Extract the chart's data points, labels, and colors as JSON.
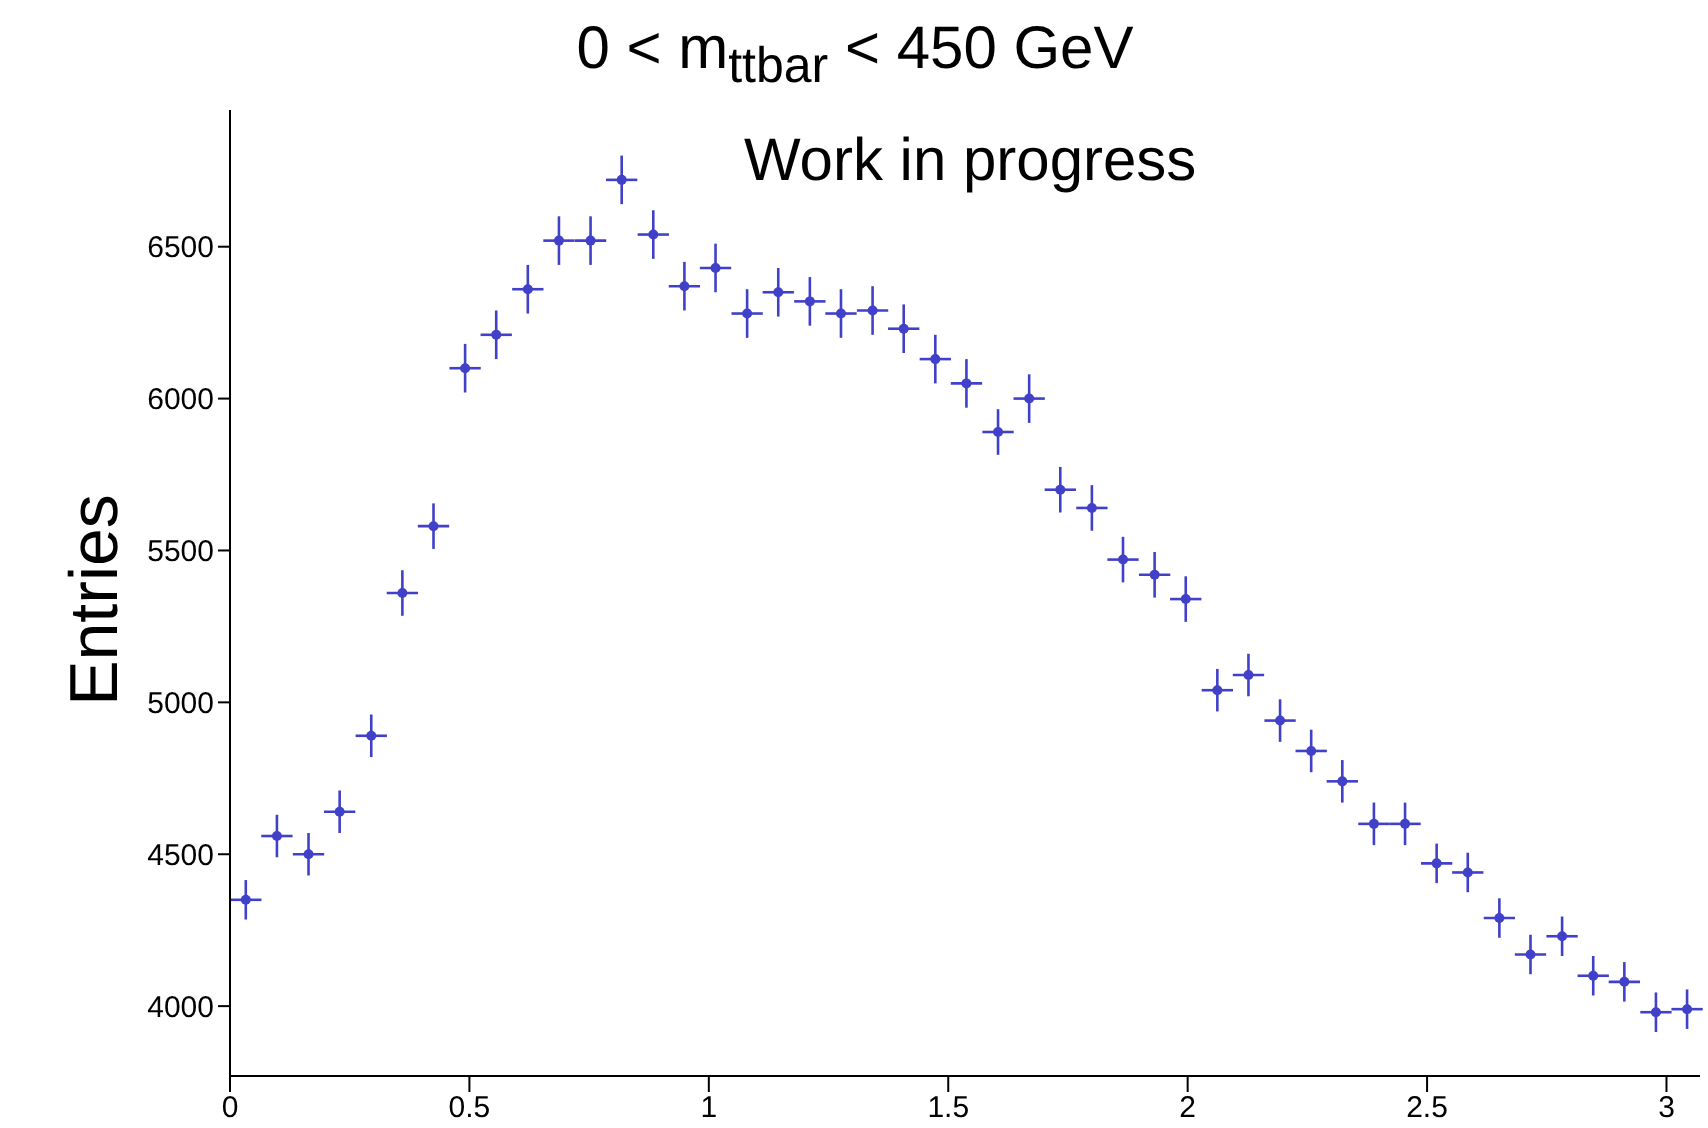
{
  "chart_data": {
    "type": "scatter",
    "title": "0 < m$_{ttbar}$ < 450 GeV",
    "ylabel": "Entries",
    "annotations": [
      "Work in progress"
    ],
    "x": [
      0.033,
      0.098,
      0.164,
      0.229,
      0.295,
      0.36,
      0.425,
      0.491,
      0.556,
      0.622,
      0.687,
      0.753,
      0.818,
      0.884,
      0.949,
      1.014,
      1.08,
      1.145,
      1.211,
      1.276,
      1.342,
      1.407,
      1.473,
      1.538,
      1.604,
      1.669,
      1.734,
      1.8,
      1.865,
      1.931,
      1.996,
      2.062,
      2.127,
      2.193,
      2.258,
      2.323,
      2.389,
      2.454,
      2.52,
      2.585,
      2.651,
      2.716,
      2.782,
      2.847,
      2.912,
      2.978,
      3.043
    ],
    "values": [
      4350,
      4560,
      4500,
      4640,
      4890,
      5360,
      5580,
      6100,
      6210,
      6360,
      6520,
      6520,
      6720,
      6540,
      6370,
      6430,
      6280,
      6350,
      6320,
      6280,
      6290,
      6230,
      6130,
      6050,
      5890,
      6000,
      5700,
      5640,
      5470,
      5420,
      5340,
      5040,
      5090,
      4940,
      4840,
      4740,
      4600,
      4600,
      4470,
      4440,
      4290,
      4170,
      4230,
      4100,
      4080,
      3980,
      3990
    ],
    "errors": [
      65,
      70,
      70,
      70,
      70,
      75,
      75,
      80,
      80,
      80,
      80,
      80,
      80,
      80,
      80,
      80,
      80,
      80,
      80,
      80,
      80,
      80,
      80,
      80,
      75,
      80,
      75,
      75,
      75,
      75,
      75,
      70,
      70,
      70,
      70,
      70,
      70,
      70,
      65,
      65,
      65,
      65,
      65,
      65,
      65,
      65,
      65
    ],
    "xerrors": [
      0.0327,
      0.0327,
      0.0327,
      0.0327,
      0.0327,
      0.0327,
      0.0327,
      0.0327,
      0.0327,
      0.0327,
      0.0327,
      0.0327,
      0.0327,
      0.0327,
      0.0327,
      0.0327,
      0.0327,
      0.0327,
      0.0327,
      0.0327,
      0.0327,
      0.0327,
      0.0327,
      0.0327,
      0.0327,
      0.0327,
      0.0327,
      0.0327,
      0.0327,
      0.0327,
      0.0327,
      0.0327,
      0.0327,
      0.0327,
      0.0327,
      0.0327,
      0.0327,
      0.0327,
      0.0327,
      0.0327,
      0.0327,
      0.0327,
      0.0327,
      0.0327,
      0.0327,
      0.0327,
      0.0327
    ],
    "color": "#4040c8",
    "xlim": [
      0,
      3.07
    ],
    "xticks": [
      0,
      0.5,
      1,
      1.5,
      2,
      2.5,
      3
    ],
    "ylim": [
      3770,
      6950
    ],
    "yticks": [
      4000,
      4500,
      5000,
      5500,
      6000,
      6500
    ]
  }
}
